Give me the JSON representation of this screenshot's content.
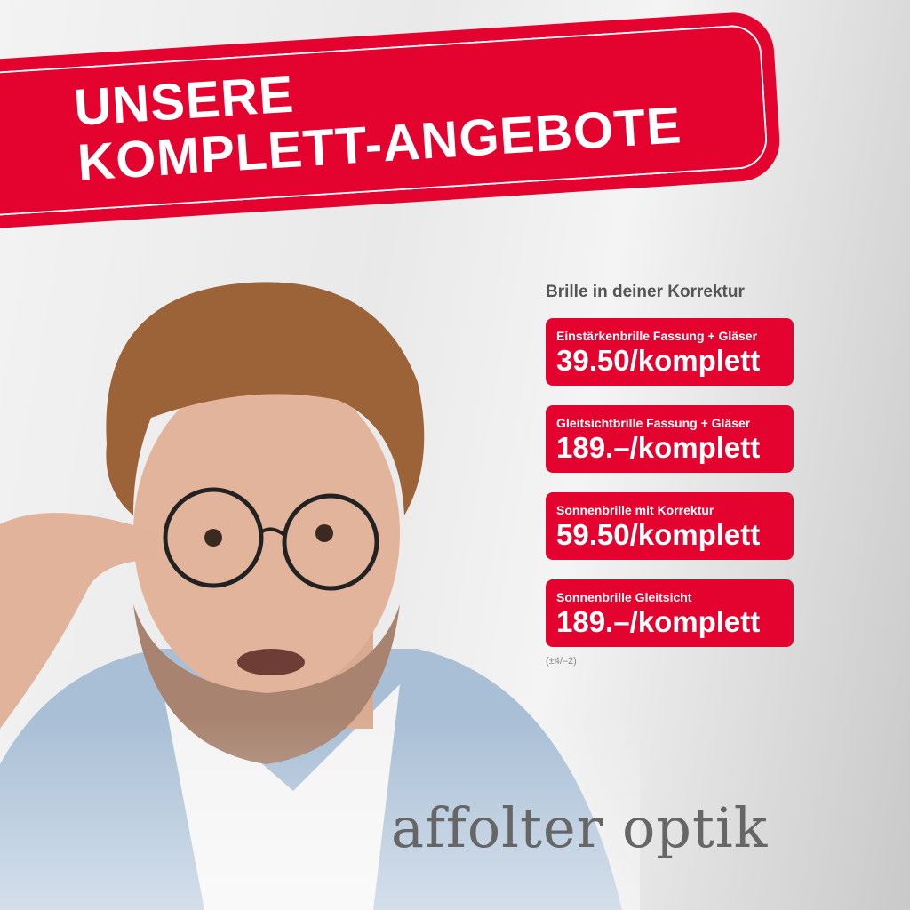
{
  "headline": {
    "line1": "UNSERE",
    "line2": "KOMPLETT-ANGEBOTE"
  },
  "colors": {
    "brand_red": "#e4032e",
    "text_grey": "#555555"
  },
  "offers": {
    "title": "Brille in deiner Korrektur",
    "items": [
      {
        "label": "Einstärkenbrille Fassung + Gläser",
        "price": "39.50/komplett"
      },
      {
        "label": "Gleitsichtbrille Fassung + Gläser",
        "price": "189.–/komplett"
      },
      {
        "label": "Sonnenbrille mit Korrektur",
        "price": "59.50/komplett"
      },
      {
        "label": "Sonnenbrille Gleitsicht",
        "price": "189.–/komplett"
      }
    ],
    "footnote": "(±4/–2)"
  },
  "logo": {
    "text": "affolter optik"
  }
}
